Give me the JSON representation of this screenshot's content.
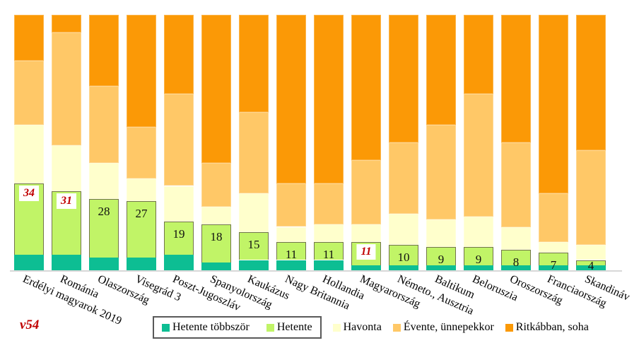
{
  "annotation": {
    "text": "v54",
    "color": "#C00000"
  },
  "colors": {
    "hetente_tobbszor": "#0DBE93",
    "hetente": "#C1F467",
    "havonta": "#FFFFCC",
    "evente": "#FFC867",
    "ritkabban": "#FB9906",
    "highlight_label": "#C00000",
    "green_border": "#72764A",
    "legend_border": "#595959",
    "axis_line": "#D8D8D8"
  },
  "chart_data": {
    "type": "bar",
    "subtype": "stacked-100-percent",
    "title": "",
    "xlabel": "",
    "ylabel": "",
    "ylim": [
      0,
      100
    ],
    "grid": false,
    "legend_position": "bottom",
    "categories": [
      "Erdélyi magyarok 2019",
      "Románia",
      "Olaszország",
      "Visegrád 3",
      "Poszt-Jugoszláv",
      "Spanyolország",
      "Kaukázus",
      "Nagy Britannia",
      "Hollandia",
      "Magyarország",
      "Németo., Ausztria",
      "Baltikum",
      "Beloruszia",
      "Oroszország",
      "Franciaország",
      "Skandináv"
    ],
    "series": [
      {
        "key": "hetente_tobbszor",
        "name": "Hetente többször",
        "color": "#0DBE93",
        "values": [
          6,
          6,
          5,
          5,
          6,
          3,
          4,
          4,
          4,
          2,
          2,
          2,
          2,
          2,
          2,
          2
        ]
      },
      {
        "key": "hetente",
        "name": "Hetente",
        "color": "#C1F467",
        "values": [
          28,
          25,
          23,
          22,
          13,
          15,
          11,
          7,
          7,
          9,
          8,
          7,
          7,
          6,
          5,
          2
        ]
      },
      {
        "key": "havonta",
        "name": "Havonta",
        "color": "#FFFFCC",
        "values": [
          23,
          18,
          14,
          9,
          14,
          7,
          15,
          6,
          7,
          7,
          12,
          11,
          12,
          9,
          4,
          6
        ]
      },
      {
        "key": "evente",
        "name": "Évente, ünnepekkor",
        "color": "#FFC867",
        "values": [
          25,
          44,
          30,
          20,
          36,
          17,
          32,
          17,
          16,
          25,
          28,
          37,
          48,
          33,
          19,
          37
        ]
      },
      {
        "key": "ritkabban",
        "name": "Ritkábban, soha",
        "color": "#FB9906",
        "values": [
          18,
          7,
          28,
          44,
          31,
          58,
          38,
          66,
          66,
          57,
          50,
          43,
          31,
          50,
          70,
          53
        ]
      }
    ],
    "bar_labels": {
      "description": "weekly total (Hetente többször + Hetente) shown at top of green segment",
      "values": [
        34,
        31,
        28,
        27,
        19,
        18,
        15,
        11,
        11,
        11,
        10,
        9,
        9,
        8,
        7,
        4
      ],
      "highlighted_indices": [
        0,
        1,
        9
      ]
    }
  },
  "legend": {
    "items": [
      {
        "label": "Hetente többször",
        "color_key": "hetente_tobbszor",
        "boxed": true
      },
      {
        "label": "Hetente",
        "color_key": "hetente",
        "boxed": true
      },
      {
        "label": "Havonta",
        "color_key": "havonta",
        "boxed": false
      },
      {
        "label": "Évente, ünnepekkor",
        "color_key": "evente",
        "boxed": false
      },
      {
        "label": "Ritkábban, soha",
        "color_key": "ritkabban",
        "boxed": false
      }
    ]
  }
}
